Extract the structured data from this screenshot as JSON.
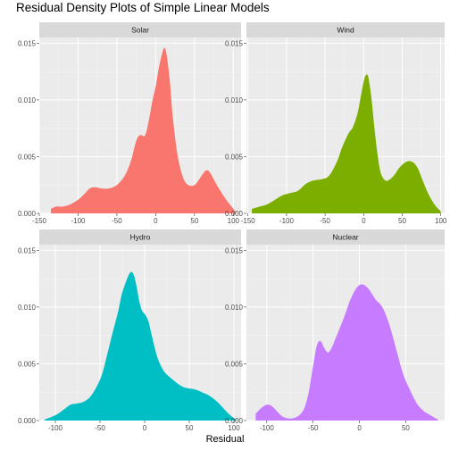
{
  "chart_data": {
    "type": "area",
    "title": "Residual Density Plots of Simple Linear Models",
    "xlabel": "Residual",
    "ylabel": "",
    "facets": "free_x",
    "panel_background": "#EBEBEB",
    "strip_background": "#D9D9D9",
    "grid": true,
    "panels": [
      {
        "name": "Solar",
        "color": "#F8766D",
        "xlim": [
          -150,
          110
        ],
        "xticks": [
          -150,
          -100,
          -50,
          0,
          50,
          100
        ],
        "ylim": [
          0,
          0.0155
        ],
        "yticks": [
          0.0,
          0.005,
          0.01,
          0.015
        ],
        "ytick_labels": [
          "0.000",
          "0.005",
          "0.010",
          "0.015"
        ],
        "x": [
          -135,
          -128,
          -120,
          -110,
          -100,
          -92,
          -85,
          -78,
          -70,
          -60,
          -50,
          -40,
          -32,
          -25,
          -20,
          -15,
          -12,
          -8,
          -4,
          0,
          4,
          8,
          11,
          14,
          18,
          22,
          28,
          35,
          42,
          50,
          56,
          62,
          66,
          70,
          78,
          86,
          93,
          100,
          104
        ],
        "y": [
          0.0004,
          0.0006,
          0.0006,
          0.0008,
          0.0012,
          0.0017,
          0.0022,
          0.0023,
          0.0022,
          0.0022,
          0.0025,
          0.0033,
          0.0046,
          0.0064,
          0.0069,
          0.0068,
          0.0072,
          0.0085,
          0.01,
          0.0112,
          0.0128,
          0.014,
          0.0146,
          0.014,
          0.0118,
          0.0085,
          0.0052,
          0.0032,
          0.0025,
          0.0025,
          0.003,
          0.0036,
          0.0038,
          0.0036,
          0.0026,
          0.0017,
          0.001,
          0.0004,
          0.0
        ]
      },
      {
        "name": "Wind",
        "color": "#7CAE00",
        "xlim": [
          -152,
          105
        ],
        "xticks": [
          -150,
          -100,
          -50,
          0,
          50,
          100
        ],
        "ylim": [
          0,
          0.0155
        ],
        "yticks": [
          0.0,
          0.005,
          0.01,
          0.015
        ],
        "ytick_labels": [
          "0.000",
          "0.005",
          "0.010",
          "0.015"
        ],
        "x": [
          -145,
          -135,
          -125,
          -115,
          -105,
          -95,
          -85,
          -75,
          -65,
          -55,
          -45,
          -35,
          -28,
          -20,
          -14,
          -8,
          -4,
          0,
          3,
          6,
          10,
          14,
          18,
          22,
          28,
          34,
          40,
          46,
          52,
          58,
          64,
          70,
          76,
          82,
          88,
          94,
          100
        ],
        "y": [
          0.0004,
          0.0006,
          0.0008,
          0.0012,
          0.0016,
          0.0018,
          0.002,
          0.0026,
          0.0029,
          0.003,
          0.0033,
          0.0045,
          0.0058,
          0.007,
          0.0076,
          0.0088,
          0.0102,
          0.0116,
          0.0122,
          0.012,
          0.0102,
          0.0075,
          0.0052,
          0.0036,
          0.0029,
          0.003,
          0.0034,
          0.004,
          0.0044,
          0.0046,
          0.0045,
          0.004,
          0.003,
          0.002,
          0.0012,
          0.0006,
          0.0002
        ]
      },
      {
        "name": "Hydro",
        "color": "#00BFC4",
        "xlim": [
          -118,
          108
        ],
        "xticks": [
          -100,
          -50,
          0,
          50,
          100
        ],
        "ylim": [
          0,
          0.0155
        ],
        "yticks": [
          0.0,
          0.005,
          0.01,
          0.015
        ],
        "ytick_labels": [
          "0.000",
          "0.005",
          "0.010",
          "0.015"
        ],
        "x": [
          -112,
          -105,
          -97,
          -90,
          -83,
          -76,
          -70,
          -62,
          -55,
          -48,
          -42,
          -36,
          -30,
          -26,
          -22,
          -18,
          -15,
          -12,
          -9,
          -6,
          -3,
          0,
          4,
          8,
          12,
          16,
          22,
          30,
          38,
          45,
          52,
          58,
          64,
          70,
          76,
          82,
          88,
          94,
          100,
          104
        ],
        "y": [
          0.0001,
          0.0003,
          0.0006,
          0.001,
          0.0014,
          0.0015,
          0.0016,
          0.002,
          0.0028,
          0.004,
          0.0058,
          0.0077,
          0.0095,
          0.011,
          0.012,
          0.0128,
          0.0131,
          0.0128,
          0.0118,
          0.0105,
          0.0097,
          0.0094,
          0.0088,
          0.0075,
          0.0062,
          0.0052,
          0.0043,
          0.0037,
          0.0032,
          0.0029,
          0.0028,
          0.0027,
          0.0025,
          0.0023,
          0.002,
          0.0016,
          0.0011,
          0.0006,
          0.0002,
          0.0
        ]
      },
      {
        "name": "Nuclear",
        "color": "#C77CFF",
        "xlim": [
          -122,
          92
        ],
        "xticks": [
          -100,
          -50,
          0,
          50
        ],
        "ylim": [
          0,
          0.0155
        ],
        "yticks": [
          0.0,
          0.005,
          0.01,
          0.015
        ],
        "ytick_labels": [
          "0.000",
          "0.005",
          "0.010",
          "0.015"
        ],
        "x": [
          -112,
          -106,
          -100,
          -95,
          -90,
          -84,
          -78,
          -72,
          -66,
          -60,
          -55,
          -50,
          -46,
          -42,
          -38,
          -34,
          -30,
          -26,
          -22,
          -18,
          -14,
          -10,
          -6,
          -2,
          2,
          6,
          10,
          14,
          18,
          22,
          26,
          30,
          34,
          38,
          42,
          46,
          50,
          54,
          58,
          62,
          66,
          70,
          74,
          78,
          82,
          85
        ],
        "y": [
          0.0006,
          0.0011,
          0.0014,
          0.0013,
          0.0009,
          0.0004,
          0.0002,
          0.0002,
          0.0004,
          0.001,
          0.0024,
          0.0048,
          0.0066,
          0.007,
          0.0064,
          0.006,
          0.0064,
          0.0072,
          0.008,
          0.0088,
          0.0097,
          0.0106,
          0.0113,
          0.0118,
          0.012,
          0.0119,
          0.0116,
          0.0111,
          0.0106,
          0.0103,
          0.0098,
          0.009,
          0.008,
          0.0068,
          0.0056,
          0.0044,
          0.0035,
          0.0028,
          0.0021,
          0.0015,
          0.0011,
          0.0008,
          0.0006,
          0.0004,
          0.0002,
          0.0001
        ]
      }
    ]
  }
}
